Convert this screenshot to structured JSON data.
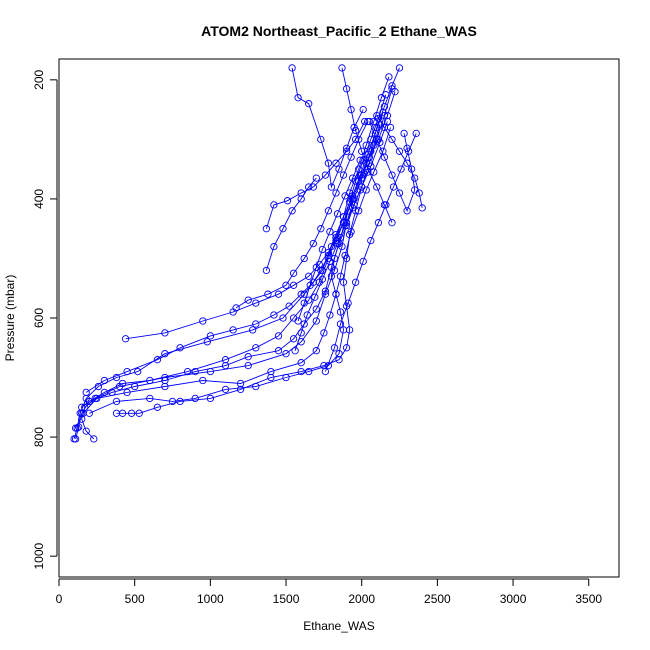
{
  "chart_data": {
    "type": "line",
    "title": "ATOM2 Northeast_Pacific_2 Ethane_WAS",
    "xlabel": "Ethane_WAS",
    "ylabel": "Pressure (mbar)",
    "xlim": [
      0,
      3700
    ],
    "ylim": [
      1035,
      165
    ],
    "y_inverted": true,
    "x_ticks": [
      0,
      500,
      1000,
      1500,
      2000,
      2500,
      3000,
      3500
    ],
    "y_ticks": [
      200,
      400,
      600,
      800,
      1000
    ],
    "grid": false,
    "marker": "open-circle",
    "color": "#0000ff",
    "series": [
      {
        "points": [
          [
            100,
            803
          ],
          [
            120,
            785
          ],
          [
            140,
            760
          ],
          [
            180,
            735
          ],
          [
            260,
            715
          ],
          [
            380,
            700
          ],
          [
            520,
            690
          ],
          [
            700,
            660
          ],
          [
            980,
            640
          ],
          [
            1280,
            620
          ],
          [
            1480,
            600
          ],
          [
            1620,
            560
          ],
          [
            1740,
            520
          ],
          [
            1800,
            480
          ],
          [
            1880,
            440
          ],
          [
            1940,
            400
          ],
          [
            2000,
            360
          ],
          [
            2060,
            320
          ],
          [
            2100,
            280
          ],
          [
            2150,
            245
          ],
          [
            2200,
            210
          ],
          [
            2250,
            180
          ]
        ]
      },
      {
        "points": [
          [
            110,
            803
          ],
          [
            130,
            783
          ],
          [
            150,
            760
          ],
          [
            200,
            740
          ],
          [
            300,
            725
          ],
          [
            420,
            710
          ],
          [
            600,
            705
          ],
          [
            850,
            690
          ],
          [
            1100,
            670
          ],
          [
            1300,
            650
          ],
          [
            1450,
            630
          ],
          [
            1550,
            600
          ],
          [
            1650,
            570
          ],
          [
            1720,
            540
          ],
          [
            1780,
            500
          ],
          [
            1830,
            465
          ],
          [
            1880,
            430
          ],
          [
            1920,
            390
          ],
          [
            1980,
            350
          ],
          [
            2030,
            310
          ],
          [
            2080,
            270
          ],
          [
            2130,
            230
          ],
          [
            2180,
            195
          ]
        ]
      },
      {
        "points": [
          [
            230,
            803
          ],
          [
            180,
            790
          ],
          [
            150,
            770
          ],
          [
            170,
            750
          ],
          [
            240,
            735
          ],
          [
            400,
            715
          ],
          [
            700,
            700
          ],
          [
            1000,
            690
          ],
          [
            1250,
            680
          ],
          [
            1500,
            660
          ],
          [
            1600,
            640
          ],
          [
            1700,
            605
          ],
          [
            1760,
            560
          ],
          [
            1820,
            520
          ],
          [
            1870,
            480
          ],
          [
            1900,
            440
          ],
          [
            1950,
            400
          ],
          [
            2000,
            365
          ],
          [
            2050,
            330
          ],
          [
            2110,
            300
          ],
          [
            2170,
            260
          ],
          [
            2220,
            220
          ]
        ]
      },
      {
        "points": [
          [
            380,
            760
          ],
          [
            420,
            760
          ],
          [
            480,
            760
          ],
          [
            530,
            760
          ],
          [
            650,
            750
          ],
          [
            800,
            740
          ],
          [
            1000,
            735
          ],
          [
            1200,
            720
          ],
          [
            1400,
            700
          ],
          [
            1600,
            690
          ],
          [
            1750,
            680
          ],
          [
            1850,
            670
          ],
          [
            1900,
            650
          ],
          [
            1920,
            620
          ],
          [
            1900,
            580
          ],
          [
            1880,
            540
          ],
          [
            1900,
            500
          ],
          [
            1920,
            460
          ],
          [
            1960,
            420
          ],
          [
            2000,
            380
          ],
          [
            2050,
            340
          ],
          [
            2100,
            300
          ],
          [
            2150,
            260
          ],
          [
            2200,
            215
          ]
        ]
      },
      {
        "points": [
          [
            150,
            750
          ],
          [
            200,
            740
          ],
          [
            350,
            725
          ],
          [
            500,
            715
          ],
          [
            700,
            705
          ],
          [
            900,
            690
          ],
          [
            1100,
            680
          ],
          [
            1250,
            665
          ],
          [
            1450,
            655
          ],
          [
            1550,
            635
          ],
          [
            1620,
            610
          ],
          [
            1700,
            585
          ],
          [
            1760,
            555
          ],
          [
            1800,
            515
          ],
          [
            1850,
            475
          ],
          [
            1900,
            445
          ],
          [
            1950,
            410
          ],
          [
            2000,
            380
          ],
          [
            2060,
            345
          ],
          [
            2120,
            305
          ],
          [
            2170,
            270
          ]
        ]
      },
      {
        "points": [
          [
            110,
            785
          ],
          [
            160,
            760
          ],
          [
            250,
            735
          ],
          [
            450,
            725
          ],
          [
            700,
            715
          ],
          [
            950,
            705
          ],
          [
            1200,
            710
          ],
          [
            1400,
            690
          ],
          [
            1600,
            675
          ],
          [
            1700,
            655
          ],
          [
            1750,
            625
          ],
          [
            1790,
            595
          ],
          [
            1830,
            560
          ],
          [
            1860,
            530
          ],
          [
            1890,
            495
          ],
          [
            1930,
            455
          ],
          [
            1980,
            420
          ],
          [
            2030,
            385
          ],
          [
            2080,
            355
          ],
          [
            2140,
            320
          ],
          [
            2190,
            280
          ]
        ]
      },
      {
        "points": [
          [
            180,
            725
          ],
          [
            300,
            705
          ],
          [
            450,
            690
          ],
          [
            650,
            670
          ],
          [
            800,
            650
          ],
          [
            1000,
            630
          ],
          [
            1150,
            620
          ],
          [
            1300,
            610
          ],
          [
            1420,
            595
          ],
          [
            1520,
            580
          ],
          [
            1600,
            560
          ],
          [
            1680,
            540
          ],
          [
            1730,
            520
          ],
          [
            1780,
            495
          ],
          [
            1830,
            470
          ],
          [
            1880,
            440
          ],
          [
            1920,
            405
          ],
          [
            1960,
            370
          ],
          [
            2010,
            335
          ],
          [
            2060,
            300
          ],
          [
            2110,
            265
          ],
          [
            2160,
            225
          ]
        ]
      },
      {
        "points": [
          [
            200,
            760
          ],
          [
            380,
            740
          ],
          [
            600,
            735
          ],
          [
            750,
            740
          ],
          [
            900,
            735
          ],
          [
            1100,
            720
          ],
          [
            1300,
            715
          ],
          [
            1500,
            700
          ],
          [
            1650,
            690
          ],
          [
            1780,
            680
          ],
          [
            1850,
            660
          ],
          [
            1880,
            620
          ],
          [
            1860,
            590
          ],
          [
            1830,
            560
          ],
          [
            1800,
            530
          ],
          [
            1820,
            500
          ],
          [
            1860,
            465
          ],
          [
            1900,
            430
          ],
          [
            1940,
            395
          ],
          [
            1990,
            360
          ],
          [
            2040,
            325
          ],
          [
            2090,
            290
          ],
          [
            2140,
            255
          ]
        ]
      },
      {
        "points": [
          [
            440,
            635
          ],
          [
            700,
            625
          ],
          [
            950,
            605
          ],
          [
            1150,
            590
          ],
          [
            1300,
            575
          ],
          [
            1450,
            560
          ],
          [
            1550,
            545
          ],
          [
            1650,
            530
          ],
          [
            1720,
            510
          ],
          [
            1780,
            490
          ],
          [
            1830,
            460
          ],
          [
            1880,
            430
          ],
          [
            1930,
            400
          ],
          [
            1980,
            370
          ],
          [
            2030,
            340
          ],
          [
            2080,
            310
          ],
          [
            2120,
            275
          ]
        ]
      },
      {
        "points": [
          [
            1170,
            583
          ],
          [
            1250,
            570
          ],
          [
            1380,
            560
          ],
          [
            1500,
            545
          ],
          [
            1550,
            525
          ],
          [
            1620,
            500
          ],
          [
            1680,
            475
          ],
          [
            1730,
            450
          ],
          [
            1780,
            420
          ],
          [
            1830,
            390
          ],
          [
            1880,
            360
          ],
          [
            1930,
            330
          ],
          [
            1980,
            300
          ],
          [
            2040,
            270
          ]
        ]
      },
      {
        "points": [
          [
            1370,
            450
          ],
          [
            1420,
            410
          ],
          [
            1510,
            403
          ],
          [
            1600,
            390
          ],
          [
            1680,
            380
          ],
          [
            1760,
            360
          ],
          [
            1830,
            340
          ],
          [
            1900,
            320
          ],
          [
            1960,
            300
          ],
          [
            2020,
            270
          ]
        ]
      },
      {
        "points": [
          [
            1540,
            180
          ],
          [
            1580,
            230
          ],
          [
            1650,
            240
          ],
          [
            1730,
            300
          ],
          [
            1780,
            340
          ],
          [
            1800,
            380
          ],
          [
            1850,
            350
          ],
          [
            1900,
            315
          ],
          [
            1950,
            280
          ],
          [
            2010,
            250
          ]
        ]
      },
      {
        "points": [
          [
            1370,
            520
          ],
          [
            1420,
            480
          ],
          [
            1480,
            450
          ],
          [
            1540,
            420
          ],
          [
            1600,
            400
          ],
          [
            1650,
            380
          ],
          [
            1700,
            365
          ]
        ]
      },
      {
        "points": [
          [
            1580,
            605
          ],
          [
            1620,
            575
          ],
          [
            1660,
            545
          ],
          [
            1700,
            515
          ],
          [
            1740,
            485
          ],
          [
            1790,
            455
          ],
          [
            1840,
            425
          ],
          [
            1890,
            395
          ],
          [
            1940,
            365
          ],
          [
            1990,
            335
          ]
        ]
      },
      {
        "points": [
          [
            1560,
            655
          ],
          [
            1600,
            625
          ],
          [
            1640,
            595
          ],
          [
            1690,
            565
          ],
          [
            1740,
            535
          ],
          [
            1790,
            505
          ],
          [
            1840,
            475
          ],
          [
            1890,
            445
          ],
          [
            1940,
            415
          ],
          [
            1990,
            385
          ],
          [
            2040,
            355
          ]
        ]
      },
      {
        "points": [
          [
            1870,
            180
          ],
          [
            1900,
            215
          ],
          [
            1930,
            250
          ],
          [
            1960,
            285
          ],
          [
            2000,
            320
          ],
          [
            2040,
            350
          ],
          [
            2100,
            380
          ],
          [
            2150,
            410
          ],
          [
            2200,
            440
          ]
        ]
      },
      {
        "points": [
          [
            2050,
            270
          ],
          [
            2100,
            300
          ],
          [
            2150,
            330
          ],
          [
            2200,
            360
          ],
          [
            2250,
            390
          ],
          [
            2300,
            420
          ],
          [
            2350,
            385
          ],
          [
            2330,
            350
          ],
          [
            2300,
            315
          ],
          [
            2280,
            290
          ]
        ]
      },
      {
        "points": [
          [
            1760,
            690
          ],
          [
            1820,
            650
          ],
          [
            1860,
            610
          ],
          [
            1910,
            575
          ],
          [
            1960,
            540
          ],
          [
            2010,
            505
          ],
          [
            2060,
            470
          ],
          [
            2110,
            440
          ],
          [
            2160,
            410
          ],
          [
            2210,
            380
          ],
          [
            2260,
            350
          ],
          [
            2310,
            320
          ],
          [
            2360,
            290
          ]
        ]
      },
      {
        "points": [
          [
            2400,
            415
          ],
          [
            2380,
            390
          ],
          [
            2350,
            365
          ],
          [
            2300,
            340
          ],
          [
            2250,
            320
          ],
          [
            2200,
            300
          ],
          [
            2150,
            280
          ],
          [
            2100,
            260
          ]
        ]
      }
    ]
  }
}
